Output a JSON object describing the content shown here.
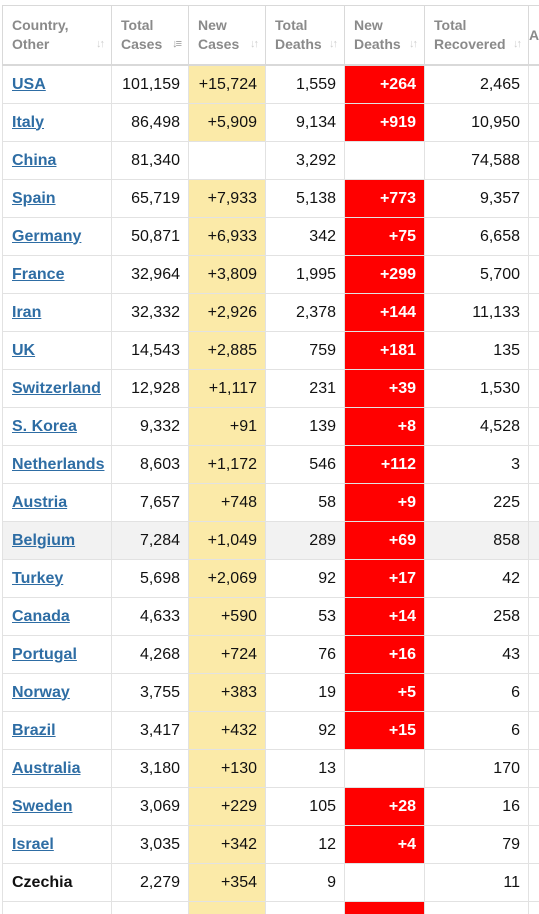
{
  "headers": {
    "country": [
      "Country,",
      "Other"
    ],
    "total_cases": [
      "Total",
      "Cases"
    ],
    "new_cases": [
      "New",
      "Cases"
    ],
    "total_deaths": [
      "Total",
      "Deaths"
    ],
    "new_deaths": [
      "New",
      "Deaths"
    ],
    "total_recovered": [
      "Total",
      "Recovered"
    ],
    "extra": "A"
  },
  "sort_icons": {
    "country": "sort-icon",
    "total_cases": "sort-desc-active-icon",
    "new_cases": "sort-icon",
    "total_deaths": "sort-icon",
    "new_deaths": "sort-icon",
    "total_recovered": "sort-icon"
  },
  "colors": {
    "link": "#2e6da4",
    "new_cases_bg": "#fbeaa8",
    "new_deaths_bg": "#ff0000",
    "highlight_row_bg": "#f2f2f2",
    "header_text": "#8a8a8a"
  },
  "rows": [
    {
      "country": "USA",
      "link": true,
      "total_cases": "101,159",
      "new_cases": "+15,724",
      "total_deaths": "1,559",
      "new_deaths": "+264",
      "total_recovered": "2,465"
    },
    {
      "country": "Italy",
      "link": true,
      "total_cases": "86,498",
      "new_cases": "+5,909",
      "total_deaths": "9,134",
      "new_deaths": "+919",
      "total_recovered": "10,950"
    },
    {
      "country": "China",
      "link": true,
      "total_cases": "81,340",
      "new_cases": "",
      "total_deaths": "3,292",
      "new_deaths": "",
      "total_recovered": "74,588"
    },
    {
      "country": "Spain",
      "link": true,
      "total_cases": "65,719",
      "new_cases": "+7,933",
      "total_deaths": "5,138",
      "new_deaths": "+773",
      "total_recovered": "9,357"
    },
    {
      "country": "Germany",
      "link": true,
      "total_cases": "50,871",
      "new_cases": "+6,933",
      "total_deaths": "342",
      "new_deaths": "+75",
      "total_recovered": "6,658"
    },
    {
      "country": "France",
      "link": true,
      "total_cases": "32,964",
      "new_cases": "+3,809",
      "total_deaths": "1,995",
      "new_deaths": "+299",
      "total_recovered": "5,700"
    },
    {
      "country": "Iran",
      "link": true,
      "total_cases": "32,332",
      "new_cases": "+2,926",
      "total_deaths": "2,378",
      "new_deaths": "+144",
      "total_recovered": "11,133"
    },
    {
      "country": "UK",
      "link": true,
      "total_cases": "14,543",
      "new_cases": "+2,885",
      "total_deaths": "759",
      "new_deaths": "+181",
      "total_recovered": "135"
    },
    {
      "country": "Switzerland",
      "link": true,
      "total_cases": "12,928",
      "new_cases": "+1,117",
      "total_deaths": "231",
      "new_deaths": "+39",
      "total_recovered": "1,530"
    },
    {
      "country": "S. Korea",
      "link": true,
      "total_cases": "9,332",
      "new_cases": "+91",
      "total_deaths": "139",
      "new_deaths": "+8",
      "total_recovered": "4,528"
    },
    {
      "country": "Netherlands",
      "link": true,
      "total_cases": "8,603",
      "new_cases": "+1,172",
      "total_deaths": "546",
      "new_deaths": "+112",
      "total_recovered": "3"
    },
    {
      "country": "Austria",
      "link": true,
      "total_cases": "7,657",
      "new_cases": "+748",
      "total_deaths": "58",
      "new_deaths": "+9",
      "total_recovered": "225"
    },
    {
      "country": "Belgium",
      "link": true,
      "highlight": true,
      "total_cases": "7,284",
      "new_cases": "+1,049",
      "total_deaths": "289",
      "new_deaths": "+69",
      "total_recovered": "858"
    },
    {
      "country": "Turkey",
      "link": true,
      "total_cases": "5,698",
      "new_cases": "+2,069",
      "total_deaths": "92",
      "new_deaths": "+17",
      "total_recovered": "42"
    },
    {
      "country": "Canada",
      "link": true,
      "total_cases": "4,633",
      "new_cases": "+590",
      "total_deaths": "53",
      "new_deaths": "+14",
      "total_recovered": "258"
    },
    {
      "country": "Portugal",
      "link": true,
      "total_cases": "4,268",
      "new_cases": "+724",
      "total_deaths": "76",
      "new_deaths": "+16",
      "total_recovered": "43"
    },
    {
      "country": "Norway",
      "link": true,
      "total_cases": "3,755",
      "new_cases": "+383",
      "total_deaths": "19",
      "new_deaths": "+5",
      "total_recovered": "6"
    },
    {
      "country": "Brazil",
      "link": true,
      "total_cases": "3,417",
      "new_cases": "+432",
      "total_deaths": "92",
      "new_deaths": "+15",
      "total_recovered": "6"
    },
    {
      "country": "Australia",
      "link": true,
      "total_cases": "3,180",
      "new_cases": "+130",
      "total_deaths": "13",
      "new_deaths": "",
      "total_recovered": "170"
    },
    {
      "country": "Sweden",
      "link": true,
      "total_cases": "3,069",
      "new_cases": "+229",
      "total_deaths": "105",
      "new_deaths": "+28",
      "total_recovered": "16"
    },
    {
      "country": "Israel",
      "link": true,
      "total_cases": "3,035",
      "new_cases": "+342",
      "total_deaths": "12",
      "new_deaths": "+4",
      "total_recovered": "79"
    },
    {
      "country": "Czechia",
      "link": false,
      "total_cases": "2,279",
      "new_cases": "+354",
      "total_deaths": "9",
      "new_deaths": "",
      "total_recovered": "11"
    }
  ]
}
